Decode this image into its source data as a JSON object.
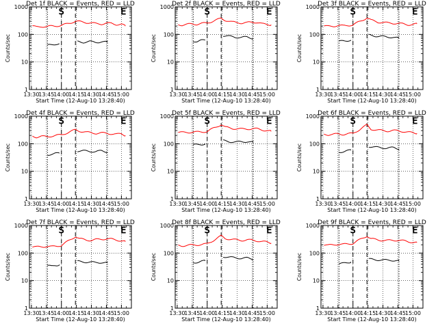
{
  "figure": {
    "background": "#ffffff",
    "axis_color": "#000000",
    "events_color": "#000000",
    "lld_color": "#ff0000"
  },
  "chart_data": [
    {
      "type": "line",
      "title": "Det 1f BLACK = Events, RED = LLD",
      "xlabel": "Start Time (12-Aug-10 13:28:40)",
      "ylabel": "Counts/sec",
      "yscale": "log",
      "ylim": [
        1,
        1000
      ],
      "y_ticks": [
        "1",
        "10",
        "100",
        "1000"
      ],
      "x_ticks": [
        "13:30",
        "13:45",
        "14:00",
        "14:15",
        "14:30",
        "14:45",
        "15:00"
      ],
      "xlim_min": [
        -2,
        100
      ],
      "markers": [
        {
          "label": "S",
          "t": 30
        },
        {
          "label": "E",
          "t": 92
        }
      ],
      "dashed_lines_min": [
        30,
        44
      ],
      "dotted_lines_min": [
        16,
        76
      ],
      "series": [
        {
          "color": "#ff0000",
          "x": [
            1,
            5,
            10,
            15,
            20,
            25,
            30,
            44,
            48,
            55,
            60,
            65,
            70,
            75,
            80,
            85,
            90,
            94
          ],
          "y": [
            200,
            185,
            195,
            190,
            200,
            205,
            210,
            300,
            290,
            270,
            260,
            245,
            240,
            255,
            250,
            230,
            235,
            200
          ]
        },
        {
          "color": "#000000",
          "x": [
            16,
            20,
            24,
            28
          ],
          "y": [
            40,
            42,
            45,
            46
          ]
        },
        {
          "color": "#000000",
          "x": [
            46,
            52,
            58,
            64,
            70,
            76
          ],
          "y": [
            55,
            52,
            55,
            52,
            54,
            52
          ]
        }
      ]
    },
    {
      "type": "line",
      "title": "Det 2f BLACK = Events, RED = LLD",
      "xlabel": "Start Time (12-Aug-10 13:28:40)",
      "ylabel": "Counts/sec",
      "yscale": "log",
      "ylim": [
        1,
        1000
      ],
      "y_ticks": [
        "1",
        "10",
        "100",
        "1000"
      ],
      "x_ticks": [
        "13:30",
        "13:45",
        "14:00",
        "14:15",
        "14:30",
        "14:45",
        "15:00"
      ],
      "xlim_min": [
        -2,
        100
      ],
      "markers": [
        {
          "label": "S",
          "t": 30
        },
        {
          "label": "E",
          "t": 92
        }
      ],
      "dashed_lines_min": [
        30,
        44
      ],
      "dotted_lines_min": [
        16,
        76
      ],
      "series": [
        {
          "color": "#ff0000",
          "x": [
            1,
            5,
            10,
            15,
            20,
            25,
            30,
            44,
            48,
            55,
            60,
            65,
            70,
            75,
            80,
            85,
            90,
            94
          ],
          "y": [
            230,
            220,
            230,
            240,
            235,
            250,
            260,
            380,
            330,
            280,
            270,
            260,
            265,
            280,
            275,
            240,
            230,
            225
          ]
        },
        {
          "color": "#000000",
          "x": [
            16,
            20,
            24,
            28
          ],
          "y": [
            58,
            55,
            60,
            62
          ]
        },
        {
          "color": "#000000",
          "x": [
            46,
            52,
            58,
            64,
            70,
            76
          ],
          "y": [
            90,
            85,
            80,
            78,
            80,
            72
          ]
        }
      ]
    },
    {
      "type": "line",
      "title": "Det 3f BLACK = Events, RED = LLD",
      "xlabel": "Start Time (12-Aug-10 13:28:40)",
      "ylabel": "Counts/sec",
      "yscale": "log",
      "ylim": [
        1,
        1000
      ],
      "y_ticks": [
        "1",
        "10",
        "100",
        "1000"
      ],
      "x_ticks": [
        "13:30",
        "13:45",
        "14:00",
        "14:15",
        "14:30",
        "14:45",
        "15:00"
      ],
      "xlim_min": [
        -2,
        100
      ],
      "markers": [
        {
          "label": "S",
          "t": 30
        },
        {
          "label": "E",
          "t": 92
        }
      ],
      "dashed_lines_min": [
        30,
        44
      ],
      "dotted_lines_min": [
        16,
        76
      ],
      "series": [
        {
          "color": "#ff0000",
          "x": [
            1,
            5,
            10,
            15,
            20,
            25,
            30,
            44,
            48,
            55,
            60,
            65,
            70,
            75,
            80,
            85,
            90,
            94
          ],
          "y": [
            200,
            195,
            200,
            210,
            205,
            215,
            220,
            400,
            330,
            280,
            270,
            260,
            255,
            250,
            240,
            225,
            230,
            240
          ]
        },
        {
          "color": "#000000",
          "x": [
            16,
            20,
            24,
            28
          ],
          "y": [
            55,
            58,
            60,
            62
          ]
        },
        {
          "color": "#000000",
          "x": [
            46,
            52,
            58,
            64,
            70,
            76
          ],
          "y": [
            95,
            88,
            85,
            80,
            80,
            72
          ]
        }
      ]
    },
    {
      "type": "line",
      "title": "Det 4f BLACK = Events, RED = LLD",
      "xlabel": "Start Time (12-Aug-10 13:28:40)",
      "ylabel": "Counts/sec",
      "yscale": "log",
      "ylim": [
        1,
        1000
      ],
      "y_ticks": [
        "1",
        "10",
        "100",
        "1000"
      ],
      "x_ticks": [
        "13:30",
        "13:45",
        "14:00",
        "14:15",
        "14:30",
        "14:45",
        "15:00"
      ],
      "xlim_min": [
        -2,
        100
      ],
      "markers": [
        {
          "label": "S",
          "t": 30
        },
        {
          "label": "E",
          "t": 92
        }
      ],
      "dashed_lines_min": [
        30,
        44
      ],
      "dotted_lines_min": [
        16,
        76
      ],
      "series": [
        {
          "color": "#ff0000",
          "x": [
            1,
            5,
            10,
            15,
            20,
            25,
            30,
            44,
            48,
            55,
            60,
            65,
            70,
            75,
            80,
            85,
            90,
            94
          ],
          "y": [
            190,
            175,
            185,
            180,
            190,
            200,
            210,
            320,
            290,
            260,
            250,
            240,
            245,
            240,
            230,
            220,
            230,
            200
          ]
        },
        {
          "color": "#000000",
          "x": [
            16,
            20,
            24,
            28
          ],
          "y": [
            40,
            42,
            44,
            45
          ]
        },
        {
          "color": "#000000",
          "x": [
            46,
            52,
            58,
            64,
            70,
            76
          ],
          "y": [
            55,
            55,
            53,
            52,
            55,
            50
          ]
        }
      ]
    },
    {
      "type": "line",
      "title": "Det 5f BLACK = Events, RED = LLD",
      "xlabel": "Start Time (12-Aug-10 13:28:40)",
      "ylabel": "Counts/sec",
      "yscale": "log",
      "ylim": [
        1,
        1000
      ],
      "y_ticks": [
        "1",
        "10",
        "100",
        "1000"
      ],
      "x_ticks": [
        "13:30",
        "13:45",
        "14:00",
        "14:15",
        "14:30",
        "14:45",
        "15:00"
      ],
      "xlim_min": [
        -2,
        100
      ],
      "markers": [
        {
          "label": "S",
          "t": 30
        },
        {
          "label": "E",
          "t": 92
        }
      ],
      "dashed_lines_min": [
        30,
        44
      ],
      "dotted_lines_min": [
        16,
        76
      ],
      "series": [
        {
          "color": "#ff0000",
          "x": [
            1,
            5,
            10,
            15,
            20,
            25,
            30,
            44,
            48,
            55,
            60,
            65,
            70,
            75,
            80,
            85,
            90,
            94
          ],
          "y": [
            260,
            255,
            260,
            265,
            265,
            270,
            280,
            500,
            400,
            360,
            350,
            340,
            345,
            350,
            345,
            320,
            300,
            280
          ]
        },
        {
          "color": "#000000",
          "x": [
            16,
            20,
            24,
            28
          ],
          "y": [
            90,
            92,
            95,
            100
          ]
        },
        {
          "color": "#000000",
          "x": [
            46,
            52,
            58,
            64,
            70,
            76
          ],
          "y": [
            130,
            120,
            115,
            118,
            120,
            112
          ]
        }
      ]
    },
    {
      "type": "line",
      "title": "Det 6f BLACK = Events, RED = LLD",
      "xlabel": "Start Time (12-Aug-10 13:28:40)",
      "ylabel": "Counts/sec",
      "yscale": "log",
      "ylim": [
        1,
        1000
      ],
      "y_ticks": [
        "1",
        "10",
        "100",
        "1000"
      ],
      "x_ticks": [
        "13:30",
        "13:45",
        "14:00",
        "14:15",
        "14:30",
        "14:45",
        "15:00"
      ],
      "xlim_min": [
        -2,
        100
      ],
      "markers": [
        {
          "label": "S",
          "t": 30
        },
        {
          "label": "E",
          "t": 92
        }
      ],
      "dashed_lines_min": [
        30,
        44
      ],
      "dotted_lines_min": [
        16,
        76
      ],
      "series": [
        {
          "color": "#ff0000",
          "x": [
            1,
            5,
            10,
            15,
            20,
            25,
            30,
            44,
            48,
            55,
            60,
            65,
            70,
            75,
            80,
            85,
            90,
            94
          ],
          "y": [
            220,
            215,
            220,
            225,
            220,
            230,
            235,
            480,
            340,
            310,
            300,
            290,
            300,
            295,
            280,
            260,
            250,
            240
          ]
        },
        {
          "color": "#000000",
          "x": [
            16,
            20,
            24,
            28
          ],
          "y": [
            50,
            52,
            55,
            58
          ]
        },
        {
          "color": "#000000",
          "x": [
            46,
            52,
            58,
            64,
            70,
            76
          ],
          "y": [
            80,
            75,
            72,
            70,
            72,
            65
          ]
        }
      ]
    },
    {
      "type": "line",
      "title": "Det 7f BLACK = Events, RED = LLD",
      "xlabel": "Start Time (12-Aug-10 13:28:40)",
      "ylabel": "Counts/sec",
      "yscale": "log",
      "ylim": [
        1,
        1000
      ],
      "y_ticks": [
        "1",
        "10",
        "100",
        "1000"
      ],
      "x_ticks": [
        "13:30",
        "13:45",
        "14:00",
        "14:15",
        "14:30",
        "14:45",
        "15:00"
      ],
      "xlim_min": [
        -2,
        100
      ],
      "markers": [
        {
          "label": "S",
          "t": 30
        },
        {
          "label": "E",
          "t": 92
        }
      ],
      "dashed_lines_min": [
        30,
        44
      ],
      "dotted_lines_min": [
        16,
        76
      ],
      "series": [
        {
          "color": "#ff0000",
          "x": [
            1,
            5,
            10,
            15,
            20,
            25,
            30,
            44,
            48,
            55,
            60,
            65,
            70,
            75,
            80,
            85,
            90,
            94
          ],
          "y": [
            170,
            165,
            170,
            175,
            170,
            180,
            190,
            400,
            330,
            300,
            290,
            310,
            320,
            330,
            320,
            300,
            280,
            260
          ]
        },
        {
          "color": "#000000",
          "x": [
            16,
            20,
            24,
            28
          ],
          "y": [
            35,
            33,
            36,
            38
          ]
        },
        {
          "color": "#000000",
          "x": [
            46,
            52,
            58,
            64,
            70,
            76
          ],
          "y": [
            50,
            48,
            47,
            45,
            46,
            44
          ]
        }
      ]
    },
    {
      "type": "line",
      "title": "Det 8f BLACK = Events, RED = LLD",
      "xlabel": "Start Time (12-Aug-10 13:28:40)",
      "ylabel": "Counts/sec",
      "yscale": "log",
      "ylim": [
        1,
        1000
      ],
      "y_ticks": [
        "1",
        "10",
        "100",
        "1000"
      ],
      "x_ticks": [
        "13:30",
        "13:45",
        "14:00",
        "14:15",
        "14:30",
        "14:45",
        "15:00"
      ],
      "xlim_min": [
        -2,
        100
      ],
      "markers": [
        {
          "label": "S",
          "t": 30
        },
        {
          "label": "E",
          "t": 92
        }
      ],
      "dashed_lines_min": [
        30,
        44
      ],
      "dotted_lines_min": [
        16,
        76
      ],
      "series": [
        {
          "color": "#ff0000",
          "x": [
            1,
            5,
            10,
            15,
            20,
            25,
            30,
            44,
            48,
            55,
            60,
            65,
            70,
            75,
            80,
            85,
            90,
            94
          ],
          "y": [
            190,
            185,
            190,
            195,
            200,
            205,
            215,
            420,
            340,
            310,
            300,
            290,
            300,
            295,
            280,
            260,
            250,
            230
          ]
        },
        {
          "color": "#000000",
          "x": [
            16,
            20,
            24,
            28
          ],
          "y": [
            45,
            47,
            50,
            52
          ]
        },
        {
          "color": "#000000",
          "x": [
            46,
            52,
            58,
            64,
            70,
            76
          ],
          "y": [
            75,
            70,
            68,
            65,
            66,
            60
          ]
        }
      ]
    },
    {
      "type": "line",
      "title": "Det 9f BLACK = Events, RED = LLD",
      "xlabel": "Start Time (12-Aug-10 13:28:40)",
      "ylabel": "Counts/sec",
      "yscale": "log",
      "ylim": [
        1,
        1000
      ],
      "y_ticks": [
        "1",
        "10",
        "100",
        "1000"
      ],
      "x_ticks": [
        "13:30",
        "13:45",
        "14:00",
        "14:15",
        "14:30",
        "14:45",
        "15:00"
      ],
      "xlim_min": [
        -2,
        100
      ],
      "markers": [
        {
          "label": "S",
          "t": 30
        },
        {
          "label": "E",
          "t": 92
        }
      ],
      "dashed_lines_min": [
        30,
        44
      ],
      "dotted_lines_min": [
        16,
        76
      ],
      "series": [
        {
          "color": "#ff0000",
          "x": [
            1,
            5,
            10,
            15,
            20,
            25,
            30,
            44,
            48,
            55,
            60,
            65,
            70,
            75,
            80,
            85,
            90,
            94
          ],
          "y": [
            200,
            190,
            200,
            210,
            205,
            215,
            225,
            420,
            330,
            300,
            290,
            285,
            290,
            295,
            280,
            260,
            250,
            240
          ]
        },
        {
          "color": "#000000",
          "x": [
            16,
            20,
            24,
            28
          ],
          "y": [
            40,
            42,
            45,
            48
          ]
        },
        {
          "color": "#000000",
          "x": [
            46,
            52,
            58,
            64,
            70,
            76
          ],
          "y": [
            60,
            58,
            56,
            55,
            55,
            52
          ]
        }
      ]
    }
  ]
}
